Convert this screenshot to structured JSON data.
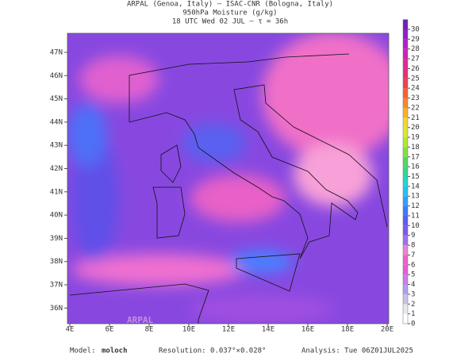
{
  "header": {
    "line1": "ARPAL (Genoa, Italy)  –  ISAC-CNR (Bologna, Italy)",
    "line2": "950hPa Moisture (g/kg)",
    "line3": "18 UTC Wed 02 JUL  –  τ = 36h"
  },
  "map": {
    "lon_ticks": [
      "4E",
      "6E",
      "8E",
      "10E",
      "12E",
      "14E",
      "16E",
      "18E",
      "20E"
    ],
    "lat_ticks": [
      "47N",
      "46N",
      "45N",
      "44N",
      "43N",
      "42N",
      "41N",
      "40N",
      "39N",
      "38N",
      "37N",
      "36N"
    ],
    "watermark": "ARPAL"
  },
  "colorbar": {
    "ticks": [
      0,
      1,
      2,
      3,
      4,
      5,
      6,
      7,
      8,
      9,
      10,
      11,
      12,
      13,
      14,
      15,
      16,
      17,
      18,
      19,
      20,
      21,
      22,
      23,
      24,
      25,
      26,
      27,
      28,
      29,
      30
    ],
    "colors": [
      "#ffffff",
      "#e6e6f0",
      "#c8c0e8",
      "#b49cf0",
      "#d07ae8",
      "#e85cd8",
      "#f060c8",
      "#f080d0",
      "#a070f0",
      "#7a58f0",
      "#5a5cf8",
      "#3a7cff",
      "#2ca0ff",
      "#20c4f0",
      "#20d8c8",
      "#30d890",
      "#50d860",
      "#80e040",
      "#b0e830",
      "#d8e830",
      "#f0d830",
      "#f8b028",
      "#f88828",
      "#f86030",
      "#f04050",
      "#e83070",
      "#e02898",
      "#d020b8",
      "#b020c8",
      "#9020c8",
      "#7020b8"
    ]
  },
  "footer": {
    "model_label": "Model:",
    "model": "moloch",
    "resolution": "Resolution: 0.037°×0.028°",
    "analysis": "Analysis: Tue 06Z01JUL2025"
  }
}
